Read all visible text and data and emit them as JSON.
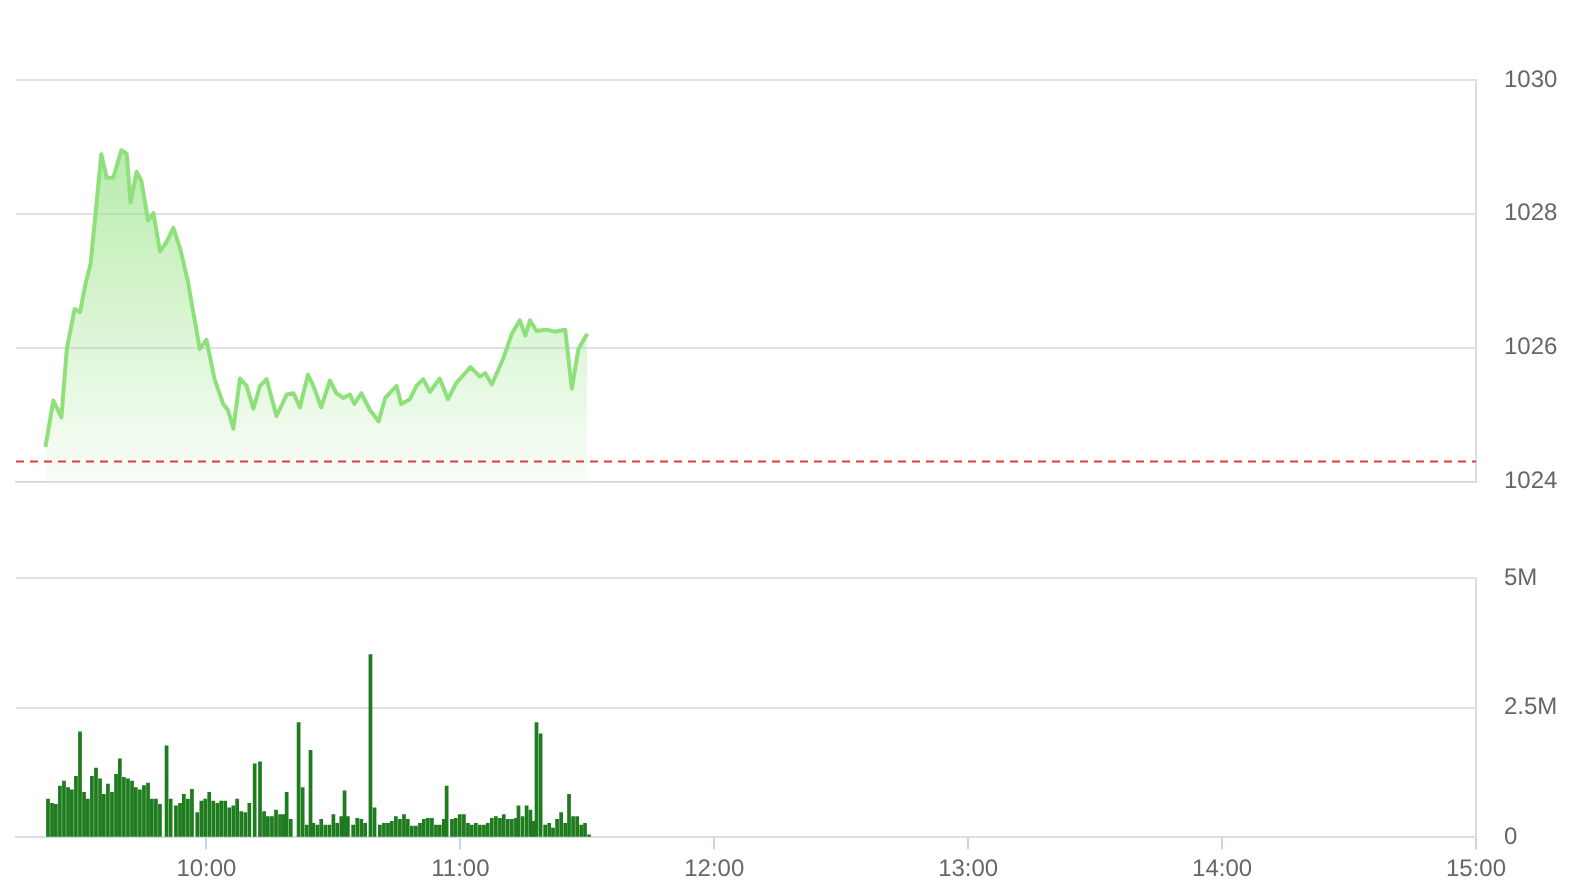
{
  "chart_data": [
    {
      "type": "area",
      "color": "#8ee07a",
      "x": [
        9.366,
        9.397,
        9.429,
        9.45,
        9.481,
        9.502,
        9.523,
        9.544,
        9.586,
        9.607,
        9.633,
        9.665,
        9.686,
        9.701,
        9.725,
        9.744,
        9.77,
        9.791,
        9.817,
        9.843,
        9.87,
        9.896,
        9.927,
        9.948,
        9.974,
        10.0,
        10.032,
        10.066,
        10.085,
        10.106,
        10.132,
        10.158,
        10.185,
        10.211,
        10.237,
        10.276,
        10.316,
        10.343,
        10.368,
        10.4,
        10.421,
        10.452,
        10.486,
        10.512,
        10.539,
        10.565,
        10.583,
        10.61,
        10.644,
        10.678,
        10.704,
        10.749,
        10.767,
        10.801,
        10.827,
        10.854,
        10.88,
        10.919,
        10.951,
        10.985,
        11.04,
        11.077,
        11.098,
        11.124,
        11.169,
        11.203,
        11.234,
        11.256,
        11.274,
        11.3,
        11.339,
        11.371,
        11.413,
        11.439,
        11.465,
        11.5
      ],
      "values": [
        1024.52,
        1025.21,
        1024.96,
        1025.98,
        1026.58,
        1026.53,
        1026.94,
        1027.26,
        1028.89,
        1028.54,
        1028.54,
        1028.95,
        1028.9,
        1028.17,
        1028.63,
        1028.49,
        1027.9,
        1028.01,
        1027.44,
        1027.58,
        1027.79,
        1027.49,
        1026.99,
        1026.53,
        1025.98,
        1026.12,
        1025.53,
        1025.16,
        1025.07,
        1024.79,
        1025.54,
        1025.43,
        1025.09,
        1025.43,
        1025.53,
        1024.98,
        1025.3,
        1025.32,
        1025.11,
        1025.6,
        1025.43,
        1025.11,
        1025.51,
        1025.32,
        1025.25,
        1025.3,
        1025.16,
        1025.32,
        1025.07,
        1024.9,
        1025.25,
        1025.43,
        1025.16,
        1025.23,
        1025.43,
        1025.53,
        1025.34,
        1025.54,
        1025.23,
        1025.48,
        1025.71,
        1025.57,
        1025.62,
        1025.45,
        1025.84,
        1026.21,
        1026.41,
        1026.18,
        1026.41,
        1026.25,
        1026.27,
        1026.24,
        1026.27,
        1025.39,
        1025.98,
        1026.21
      ],
      "xlim": [
        9.25,
        15
      ],
      "ylim": [
        1024,
        1030
      ],
      "yticks": [
        1024,
        1026,
        1028,
        1030
      ],
      "grid": "y",
      "tick_labels": "y",
      "ref_lines": [
        {
          "axis": "y",
          "value": 1024.3,
          "color": "#e03c3c",
          "line_style": "dashed"
        }
      ]
    },
    {
      "type": "bar",
      "color": "#1e7b1e",
      "x": [
        9.376,
        9.392,
        9.407,
        9.423,
        9.439,
        9.455,
        9.47,
        9.486,
        9.502,
        9.518,
        9.533,
        9.549,
        9.565,
        9.581,
        9.596,
        9.612,
        9.628,
        9.644,
        9.659,
        9.675,
        9.691,
        9.707,
        9.722,
        9.738,
        9.754,
        9.77,
        9.785,
        9.801,
        9.817,
        9.843,
        9.859,
        9.88,
        9.896,
        9.911,
        9.927,
        9.943,
        9.964,
        9.98,
        9.995,
        10.011,
        10.027,
        10.043,
        10.058,
        10.074,
        10.09,
        10.106,
        10.121,
        10.137,
        10.153,
        10.169,
        10.19,
        10.211,
        10.227,
        10.242,
        10.258,
        10.274,
        10.29,
        10.305,
        10.316,
        10.332,
        10.363,
        10.379,
        10.395,
        10.41,
        10.421,
        10.437,
        10.452,
        10.468,
        10.484,
        10.5,
        10.515,
        10.531,
        10.544,
        10.557,
        10.578,
        10.594,
        10.61,
        10.625,
        10.646,
        10.662,
        10.683,
        10.699,
        10.715,
        10.73,
        10.746,
        10.762,
        10.778,
        10.793,
        10.809,
        10.825,
        10.841,
        10.856,
        10.872,
        10.888,
        10.904,
        10.919,
        10.935,
        10.946,
        10.967,
        10.982,
        10.998,
        11.014,
        11.03,
        11.045,
        11.061,
        11.077,
        11.093,
        11.108,
        11.124,
        11.14,
        11.156,
        11.171,
        11.187,
        11.203,
        11.219,
        11.229,
        11.245,
        11.261,
        11.276,
        11.287,
        11.3,
        11.316,
        11.334,
        11.35,
        11.365,
        11.381,
        11.397,
        11.413,
        11.428,
        11.444,
        11.46,
        11.476,
        11.491,
        11.507
      ],
      "values": [
        0.73,
        0.65,
        0.63,
        0.98,
        1.08,
        0.95,
        0.91,
        1.17,
        2.03,
        0.86,
        0.73,
        1.17,
        1.33,
        1.12,
        0.82,
        1.02,
        0.86,
        1.21,
        1.51,
        1.15,
        1.12,
        1.08,
        0.95,
        0.91,
        0.99,
        1.04,
        0.73,
        0.73,
        0.63,
        1.76,
        0.73,
        0.6,
        0.65,
        0.82,
        0.73,
        0.92,
        0.47,
        0.69,
        0.73,
        0.86,
        0.69,
        0.65,
        0.69,
        0.69,
        0.56,
        0.6,
        0.73,
        0.49,
        0.47,
        0.65,
        1.41,
        1.45,
        0.49,
        0.39,
        0.39,
        0.52,
        0.43,
        0.43,
        0.86,
        0.34,
        2.21,
        0.95,
        0.23,
        1.67,
        0.26,
        0.23,
        0.34,
        0.23,
        0.23,
        0.43,
        0.26,
        0.39,
        0.89,
        0.39,
        0.23,
        0.36,
        0.34,
        0.26,
        3.52,
        0.56,
        0.23,
        0.26,
        0.26,
        0.3,
        0.39,
        0.34,
        0.43,
        0.34,
        0.21,
        0.21,
        0.26,
        0.34,
        0.36,
        0.36,
        0.23,
        0.23,
        0.34,
        0.98,
        0.34,
        0.36,
        0.43,
        0.43,
        0.26,
        0.23,
        0.26,
        0.23,
        0.23,
        0.26,
        0.36,
        0.39,
        0.36,
        0.43,
        0.34,
        0.34,
        0.36,
        0.6,
        0.39,
        0.6,
        0.52,
        0.3,
        2.21,
        1.99,
        0.23,
        0.26,
        0.17,
        0.34,
        0.47,
        0.26,
        0.82,
        0.39,
        0.39,
        0.23,
        0.26,
        0.04
      ],
      "xlim": [
        9.25,
        15
      ],
      "xticks": [
        {
          "value": 10,
          "label": "10:00"
        },
        {
          "value": 11,
          "label": "11:00"
        },
        {
          "value": 12,
          "label": "12:00"
        },
        {
          "value": 13,
          "label": "13:00"
        },
        {
          "value": 14,
          "label": "14:00"
        },
        {
          "value": 15,
          "label": "15:00"
        }
      ],
      "ylim": [
        0,
        5
      ],
      "yticks": [
        0,
        {
          "value": 2.5,
          "label": "2.5M"
        },
        {
          "value": 5,
          "label": "5M"
        }
      ],
      "grid": "y"
    }
  ]
}
